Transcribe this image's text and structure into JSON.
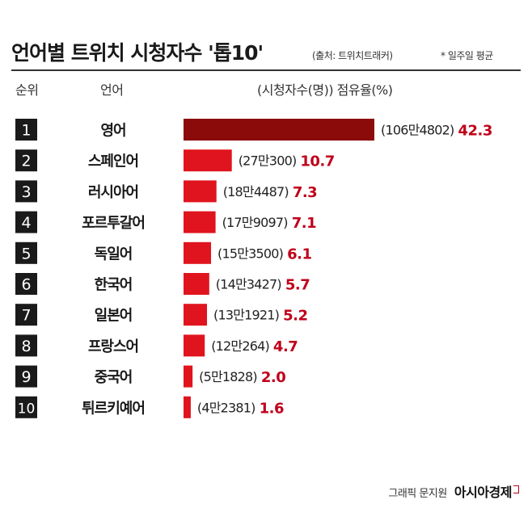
{
  "header": {
    "title": "언어별 트위치 시청자수 '톱10'",
    "source": "(출처: 트위치트래커)",
    "note": "* 일주일 평균"
  },
  "columns": {
    "rank": "순위",
    "language": "언어",
    "values": "(시청자수(명)) 점유율(%)"
  },
  "colors": {
    "top_bar": "#8b0a0a",
    "bar": "#e0141e",
    "rank_box": "#1a1a1a",
    "share_text": "#c0001a"
  },
  "chart_data": {
    "type": "bar",
    "orientation": "horizontal",
    "categories": [
      "영어",
      "스페인어",
      "러시아어",
      "포르투갈어",
      "독일어",
      "한국어",
      "일본어",
      "프랑스어",
      "중국어",
      "튀르키예어"
    ],
    "ranks": [
      "1",
      "2",
      "3",
      "4",
      "5",
      "6",
      "7",
      "8",
      "9",
      "10"
    ],
    "viewer_labels": [
      "(106만4802)",
      "(27만300)",
      "(18만4487)",
      "(17만9097)",
      "(15만3500)",
      "(14만3427)",
      "(13만1921)",
      "(12만264)",
      "(5만1828)",
      "(4만2381)"
    ],
    "viewers": [
      1064802,
      270300,
      184487,
      179097,
      153500,
      143427,
      131921,
      120264,
      51828,
      42381
    ],
    "values": [
      42.3,
      10.7,
      7.3,
      7.1,
      6.1,
      5.7,
      5.2,
      4.7,
      2.0,
      1.6
    ],
    "value_labels": [
      "42.3",
      "10.7",
      "7.3",
      "7.1",
      "6.1",
      "5.7",
      "5.2",
      "4.7",
      "2.0",
      "1.6"
    ],
    "xlim": [
      0,
      42.3
    ]
  },
  "footer": {
    "credit": "그래픽 문지원",
    "brand": "아시아경제"
  }
}
